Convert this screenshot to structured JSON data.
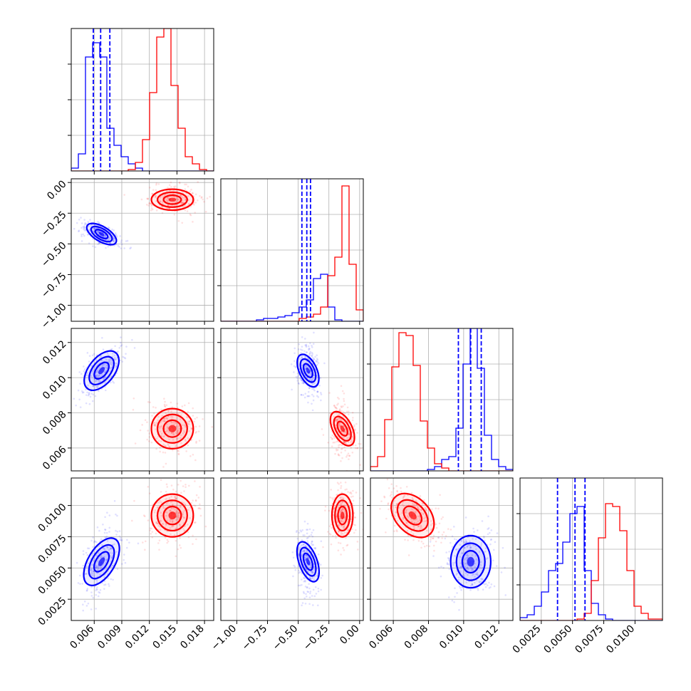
{
  "chart_data": {
    "type": "corner",
    "parameters": 4,
    "grid": true,
    "series": [
      {
        "color": "#0000ff",
        "means": [
          0.0068,
          -0.42,
          0.0104,
          0.0055
        ],
        "sds": [
          0.0009,
          0.04,
          0.0006,
          0.0011
        ],
        "quantile_markers": true
      },
      {
        "color": "#ff0000",
        "means": [
          0.0145,
          -0.14,
          0.0071,
          0.0092
        ],
        "sds": [
          0.0012,
          0.045,
          0.0006,
          0.0009
        ],
        "quantile_markers": false
      }
    ],
    "axes": [
      {
        "range": [
          0.0035,
          0.019
        ],
        "ticks": [
          0.006,
          0.009,
          0.012,
          0.015,
          0.018
        ],
        "tick_labels": [
          "0.006",
          "0.009",
          "0.012",
          "0.015",
          "0.018"
        ]
      },
      {
        "range": [
          -1.13,
          0.03
        ],
        "ticks": [
          -1.0,
          -0.75,
          -0.5,
          -0.25,
          0.0
        ],
        "tick_labels": [
          "−1.00",
          "−0.75",
          "−0.50",
          "−0.25",
          "0.00"
        ]
      },
      {
        "range": [
          0.0047,
          0.0128
        ],
        "ticks": [
          0.006,
          0.008,
          0.01,
          0.012
        ],
        "tick_labels": [
          "0.006",
          "0.008",
          "0.010",
          "0.012"
        ]
      },
      {
        "range": [
          0.0008,
          0.0122
        ],
        "ticks": [
          0.0025,
          0.005,
          0.0075,
          0.01
        ],
        "tick_labels": [
          "0.0025",
          "0.0050",
          "0.0075",
          "0.0100"
        ]
      }
    ],
    "histograms": [
      {
        "blue": [
          0.02,
          0.12,
          0.8,
          0.9,
          0.8,
          0.3,
          0.18,
          0.1,
          0.05,
          0.02,
          0.0,
          0.0,
          0.0,
          0.0,
          0.0,
          0.0,
          0.0,
          0.0,
          0.0,
          0.0
        ],
        "red": [
          0.0,
          0.0,
          0.0,
          0.0,
          0.0,
          0.0,
          0.0,
          0.0,
          0.01,
          0.06,
          0.22,
          0.55,
          0.94,
          1.0,
          0.6,
          0.3,
          0.1,
          0.05,
          0.01,
          0.0
        ]
      },
      {
        "blue": [
          0.0,
          0.0,
          0.0,
          0.0,
          0.0,
          0.01,
          0.02,
          0.02,
          0.03,
          0.04,
          0.06,
          0.1,
          0.15,
          0.3,
          0.33,
          0.1,
          0.01,
          0.0,
          0.0,
          0.0
        ],
        "red": [
          0.0,
          0.0,
          0.0,
          0.0,
          0.0,
          0.0,
          0.0,
          0.0,
          0.0,
          0.0,
          0.0,
          0.02,
          0.03,
          0.05,
          0.1,
          0.32,
          0.45,
          0.95,
          0.4,
          0.08
        ]
      },
      {
        "blue": [
          0.0,
          0.0,
          0.0,
          0.0,
          0.0,
          0.0,
          0.0,
          0.0,
          0.01,
          0.03,
          0.08,
          0.1,
          0.3,
          0.75,
          1.0,
          0.72,
          0.25,
          0.08,
          0.03,
          0.01
        ],
        "red": [
          0.03,
          0.1,
          0.36,
          0.73,
          0.97,
          0.95,
          0.74,
          0.35,
          0.16,
          0.05,
          0.02,
          0.0,
          0.0,
          0.0,
          0.0,
          0.0,
          0.0,
          0.0,
          0.0,
          0.0
        ]
      },
      {
        "blue": [
          0.02,
          0.04,
          0.1,
          0.2,
          0.35,
          0.4,
          0.55,
          0.75,
          0.8,
          0.35,
          0.12,
          0.04,
          0.01,
          0.0,
          0.0,
          0.0,
          0.0,
          0.0,
          0.0,
          0.0
        ],
        "red": [
          0.0,
          0.0,
          0.0,
          0.0,
          0.0,
          0.0,
          0.0,
          0.0,
          0.01,
          0.05,
          0.28,
          0.58,
          0.82,
          0.8,
          0.63,
          0.35,
          0.1,
          0.05,
          0.01,
          0.01
        ]
      }
    ],
    "blue_quantiles": [
      [
        0.0059,
        0.0067,
        0.0077
      ],
      [
        -0.47,
        -0.43,
        -0.4
      ],
      [
        0.0097,
        0.0104,
        0.011
      ],
      [
        0.0038,
        0.0052,
        0.006
      ]
    ],
    "correlations": {
      "1,0": {
        "blue": -0.6,
        "red": 0.0
      },
      "2,0": {
        "blue": 0.55,
        "red": 0.0
      },
      "2,1": {
        "blue": -0.2,
        "red": -0.3
      },
      "3,0": {
        "blue": 0.45,
        "red": 0.0
      },
      "3,1": {
        "blue": -0.1,
        "red": 0.0
      },
      "3,2": {
        "blue": 0.0,
        "red": -0.45
      }
    }
  }
}
